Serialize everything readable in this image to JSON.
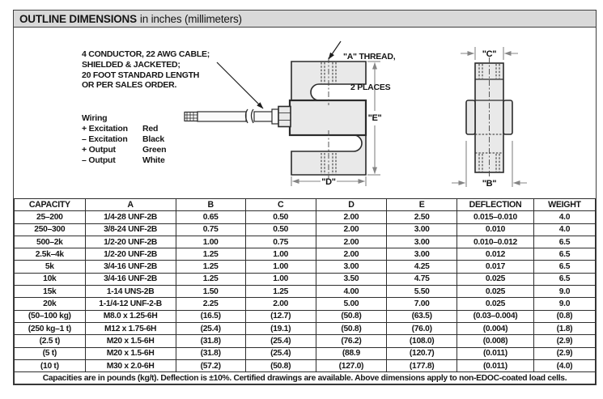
{
  "title": {
    "bold": "OUTLINE DIMENSIONS",
    "rest": "in inches (millimeters)"
  },
  "colors": {
    "title_bar_bg": "#d9d9d9",
    "drawing_fill": "#e9e9e9",
    "line": "#2b2b2b",
    "dimension_line": "#858585"
  },
  "diagram": {
    "cable_note": "4 CONDUCTOR, 22 AWG CABLE;\nSHIELDED & JACKETED;\n20 FOOT STANDARD LENGTH\nOR PER SALES ORDER.",
    "a_thread_line1": "\"A\" THREAD,",
    "a_thread_line2": "2 PLACES",
    "wiring": {
      "heading": "Wiring",
      "rows": [
        {
          "signal": "+ Excitation",
          "color": "Red"
        },
        {
          "signal": "– Excitation",
          "color": "Black"
        },
        {
          "signal": "+ Output",
          "color": "Green"
        },
        {
          "signal": "– Output",
          "color": "White"
        }
      ]
    },
    "dim_labels": {
      "e": "\"E\"",
      "d": "\"D\"",
      "c": "\"C\"",
      "b": "\"B\""
    }
  },
  "table": {
    "headers": [
      "CAPACITY",
      "A",
      "B",
      "C",
      "D",
      "E",
      "DEFLECTION",
      "WEIGHT"
    ],
    "rows": [
      [
        "25–200",
        "1/4-28 UNF-2B",
        "0.65",
        "0.50",
        "2.00",
        "2.50",
        "0.015–0.010",
        "4.0"
      ],
      [
        "250–300",
        "3/8-24 UNF-2B",
        "0.75",
        "0.50",
        "2.00",
        "3.00",
        "0.010",
        "4.0"
      ],
      [
        "500–2k",
        "1/2-20 UNF-2B",
        "1.00",
        "0.75",
        "2.00",
        "3.00",
        "0.010–0.012",
        "6.5"
      ],
      [
        "2.5k–4k",
        "1/2-20 UNF-2B",
        "1.25",
        "1.00",
        "2.00",
        "3.00",
        "0.012",
        "6.5"
      ],
      [
        "5k",
        "3/4-16 UNF-2B",
        "1.25",
        "1.00",
        "3.00",
        "4.25",
        "0.017",
        "6.5"
      ],
      [
        "10k",
        "3/4-16 UNF-2B",
        "1.25",
        "1.00",
        "3.50",
        "4.75",
        "0.025",
        "6.5"
      ],
      [
        "15k",
        "1-14 UNS-2B",
        "1.50",
        "1.25",
        "4.00",
        "5.50",
        "0.025",
        "9.0"
      ],
      [
        "20k",
        "1-1/4-12 UNF-2-B",
        "2.25",
        "2.00",
        "5.00",
        "7.00",
        "0.025",
        "9.0"
      ],
      [
        "(50–100 kg)",
        "M8.0 x 1.25-6H",
        "(16.5)",
        "(12.7)",
        "(50.8)",
        "(63.5)",
        "(0.03–0.004)",
        "(0.8)"
      ],
      [
        "(250 kg–1 t)",
        "M12 x 1.75-6H",
        "(25.4)",
        "(19.1)",
        "(50.8)",
        "(76.0)",
        "(0.004)",
        "(1.8)"
      ],
      [
        "(2.5 t)",
        "M20 x 1.5-6H",
        "(31.8)",
        "(25.4)",
        "(76.2)",
        "(108.0)",
        "(0.008)",
        "(2.9)"
      ],
      [
        "(5 t)",
        "M20 x 1.5-6H",
        "(31.8)",
        "(25.4)",
        "(88.9",
        "(120.7)",
        "(0.011)",
        "(2.9)"
      ],
      [
        "(10 t)",
        "M30 x 2.0-6H",
        "(57.2)",
        "(50.8)",
        "(127.0)",
        "(177.8)",
        "(0.011)",
        "(4.0)"
      ]
    ],
    "footnote": "Capacities are in pounds (kg/t). Deflection is ±10%. Certified drawings are available. Above dimensions apply to non-EDOC-coated load cells."
  }
}
